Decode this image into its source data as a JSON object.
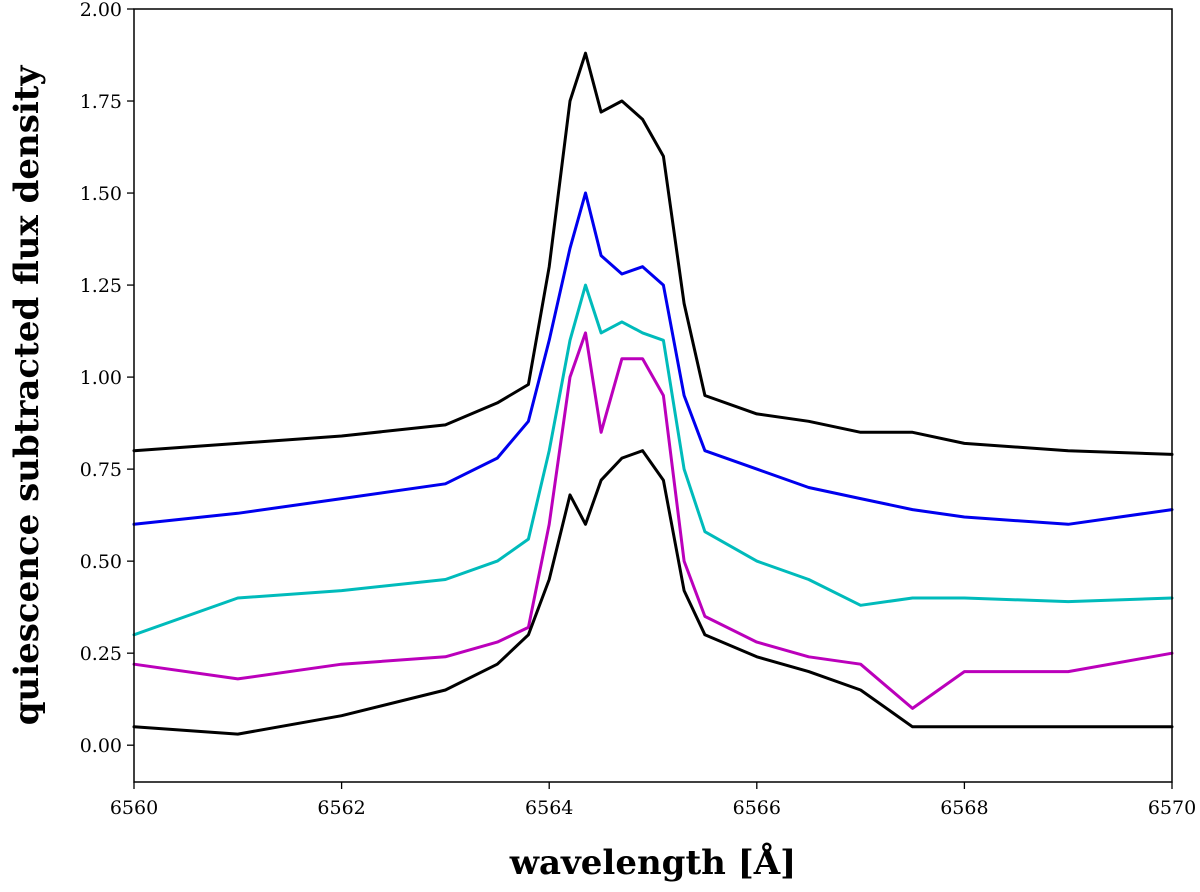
{
  "chart_data": {
    "type": "line",
    "title": "",
    "xlabel": "wavelength [Å]",
    "ylabel": "quiescence subtracted flux density",
    "xlim": [
      6560,
      6570
    ],
    "ylim": [
      -0.1,
      2.0
    ],
    "x_ticks": [
      6560,
      6562,
      6564,
      6566,
      6568,
      6570
    ],
    "x_tick_labels": [
      "6560",
      "6562",
      "6564",
      "6566",
      "6568",
      "6570"
    ],
    "y_ticks": [
      0.0,
      0.25,
      0.5,
      0.75,
      1.0,
      1.25,
      1.5,
      1.75,
      2.0
    ],
    "y_tick_labels": [
      "0.00",
      "0.25",
      "0.50",
      "0.75",
      "1.00",
      "1.25",
      "1.50",
      "1.75",
      "2.00"
    ],
    "grid": false,
    "legend": "none",
    "series": [
      {
        "color": "#000000",
        "x": [
          6560.0,
          6561.0,
          6562.0,
          6563.0,
          6563.5,
          6563.8,
          6564.0,
          6564.2,
          6564.35,
          6564.5,
          6564.7,
          6564.9,
          6565.1,
          6565.3,
          6565.5,
          6566.0,
          6566.5,
          6567.0,
          6567.5,
          6568.0,
          6569.0,
          6570.0
        ],
        "values": [
          0.8,
          0.82,
          0.84,
          0.87,
          0.93,
          0.98,
          1.3,
          1.75,
          1.88,
          1.72,
          1.75,
          1.7,
          1.6,
          1.2,
          0.95,
          0.9,
          0.88,
          0.85,
          0.85,
          0.82,
          0.8,
          0.79
        ]
      },
      {
        "color": "#0000ee",
        "x": [
          6560.0,
          6561.0,
          6562.0,
          6563.0,
          6563.5,
          6563.8,
          6564.0,
          6564.2,
          6564.35,
          6564.5,
          6564.7,
          6564.9,
          6565.1,
          6565.3,
          6565.5,
          6566.0,
          6566.5,
          6567.0,
          6567.5,
          6568.0,
          6569.0,
          6570.0
        ],
        "values": [
          0.6,
          0.63,
          0.67,
          0.71,
          0.78,
          0.88,
          1.1,
          1.35,
          1.5,
          1.33,
          1.28,
          1.3,
          1.25,
          0.95,
          0.8,
          0.75,
          0.7,
          0.67,
          0.64,
          0.62,
          0.6,
          0.64
        ]
      },
      {
        "color": "#00bbbb",
        "x": [
          6560.0,
          6561.0,
          6562.0,
          6563.0,
          6563.5,
          6563.8,
          6564.0,
          6564.2,
          6564.35,
          6564.5,
          6564.7,
          6564.9,
          6565.1,
          6565.3,
          6565.5,
          6566.0,
          6566.5,
          6567.0,
          6567.5,
          6568.0,
          6569.0,
          6570.0
        ],
        "values": [
          0.3,
          0.4,
          0.42,
          0.45,
          0.5,
          0.56,
          0.8,
          1.1,
          1.25,
          1.12,
          1.15,
          1.12,
          1.1,
          0.75,
          0.58,
          0.5,
          0.45,
          0.38,
          0.4,
          0.4,
          0.39,
          0.4
        ]
      },
      {
        "color": "#bb00bb",
        "x": [
          6560.0,
          6561.0,
          6562.0,
          6563.0,
          6563.5,
          6563.8,
          6564.0,
          6564.2,
          6564.35,
          6564.5,
          6564.7,
          6564.9,
          6565.1,
          6565.3,
          6565.5,
          6566.0,
          6566.5,
          6567.0,
          6567.5,
          6568.0,
          6569.0,
          6570.0
        ],
        "values": [
          0.22,
          0.18,
          0.22,
          0.24,
          0.28,
          0.32,
          0.6,
          1.0,
          1.12,
          0.85,
          1.05,
          1.05,
          0.95,
          0.5,
          0.35,
          0.28,
          0.24,
          0.22,
          0.1,
          0.2,
          0.2,
          0.25
        ]
      },
      {
        "color": "#000000",
        "x": [
          6560.0,
          6561.0,
          6562.0,
          6563.0,
          6563.5,
          6563.8,
          6564.0,
          6564.2,
          6564.35,
          6564.5,
          6564.7,
          6564.9,
          6565.1,
          6565.3,
          6565.5,
          6566.0,
          6566.5,
          6567.0,
          6567.5,
          6568.0,
          6569.0,
          6570.0
        ],
        "values": [
          0.05,
          0.03,
          0.08,
          0.15,
          0.22,
          0.3,
          0.45,
          0.68,
          0.6,
          0.72,
          0.78,
          0.8,
          0.72,
          0.42,
          0.3,
          0.24,
          0.2,
          0.15,
          0.05,
          0.05,
          0.05,
          0.05
        ]
      }
    ]
  }
}
